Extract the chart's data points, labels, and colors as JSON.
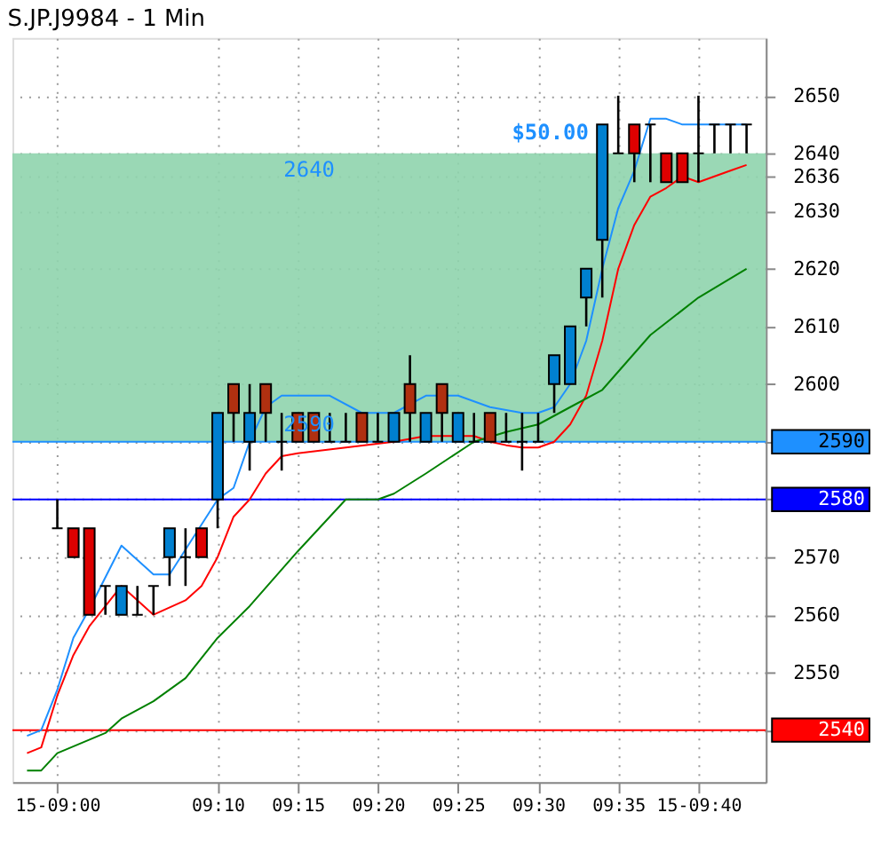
{
  "chart_data": {
    "type": "candlestick",
    "title": "S.JP.J9984 - 1 Min",
    "x": [
      9.0,
      9.0167,
      9.0333,
      9.05,
      9.0667,
      9.0833,
      9.1,
      9.1167,
      9.1333,
      9.15,
      9.1667,
      9.1833,
      9.2,
      9.2167,
      9.2333,
      9.25,
      9.2667,
      9.2833,
      9.3,
      9.3167,
      9.3333,
      9.35,
      9.3667,
      9.3833,
      9.4,
      9.4167,
      9.4333,
      9.45,
      9.4667,
      9.4833,
      9.5,
      9.5167,
      9.5333,
      9.55,
      9.5667,
      9.5833,
      9.6,
      9.6167,
      9.6333,
      9.65,
      9.6667,
      9.6833,
      9.7,
      9.7167
    ],
    "ohlc": [
      [
        2575,
        2580,
        2575,
        2575
      ],
      [
        2575,
        2575,
        2570,
        2570
      ],
      [
        2575,
        2575,
        2560,
        2560
      ],
      [
        2565,
        2565,
        2560,
        2565
      ],
      [
        2560,
        2565,
        2560,
        2565
      ],
      [
        2560,
        2565,
        2560,
        2560
      ],
      [
        2565,
        2565,
        2560,
        2565
      ],
      [
        2570,
        2575,
        2565,
        2575
      ],
      [
        2570,
        2575,
        2565,
        2570
      ],
      [
        2575,
        2575,
        2570,
        2570
      ],
      [
        2580,
        2595,
        2575,
        2595
      ],
      [
        2600,
        2600,
        2590,
        2595
      ],
      [
        2590,
        2600,
        2585,
        2595
      ],
      [
        2600,
        2600,
        2590,
        2595
      ],
      [
        2590,
        2595,
        2585,
        2590
      ],
      [
        2595,
        2595,
        2590,
        2590
      ],
      [
        2595,
        2595,
        2590,
        2590
      ],
      [
        2590,
        2595,
        2590,
        2590
      ],
      [
        2590,
        2595,
        2590,
        2590
      ],
      [
        2595,
        2595,
        2590,
        2590
      ],
      [
        2590,
        2595,
        2590,
        2590
      ],
      [
        2590,
        2595,
        2590,
        2595
      ],
      [
        2600,
        2605,
        2590,
        2595
      ],
      [
        2590,
        2595,
        2590,
        2595
      ],
      [
        2600,
        2600,
        2590,
        2595
      ],
      [
        2590,
        2595,
        2590,
        2595
      ],
      [
        2590,
        2595,
        2590,
        2590
      ],
      [
        2595,
        2595,
        2590,
        2590
      ],
      [
        2590,
        2595,
        2590,
        2590
      ],
      [
        2590,
        2595,
        2585,
        2590
      ],
      [
        2590,
        2595,
        2590,
        2590
      ],
      [
        2600,
        2605,
        2595,
        2605
      ],
      [
        2600,
        2610,
        2600,
        2610
      ],
      [
        2615,
        2620,
        2610,
        2620
      ],
      [
        2625,
        2645,
        2615,
        2645
      ],
      [
        2640,
        2650,
        2640,
        2640
      ],
      [
        2645,
        2645,
        2635,
        2640
      ],
      [
        2645,
        2645,
        2635,
        2645
      ],
      [
        2640,
        2640,
        2635,
        2635
      ],
      [
        2640,
        2640,
        2635,
        2635
      ],
      [
        2640,
        2650,
        2635,
        2640
      ],
      [
        2645,
        2645,
        2640,
        2645
      ],
      [
        2645,
        2645,
        2640,
        2645
      ],
      [
        2645,
        2645,
        2640,
        2645
      ]
    ],
    "colors": [
      "#000000",
      "#dd0000",
      "#dd0000",
      "#000000",
      "#0080d0",
      "#000000",
      "#000000",
      "#0080d0",
      "#000000",
      "#dd0000",
      "#0080d0",
      "#b03010",
      "#0080d0",
      "#b03010",
      "#000000",
      "#b03010",
      "#b03010",
      "#000000",
      "#000000",
      "#b03010",
      "#000000",
      "#0080d0",
      "#b03010",
      "#0080d0",
      "#b03010",
      "#0080d0",
      "#000000",
      "#b03010",
      "#000000",
      "#000000",
      "#000000",
      "#0080d0",
      "#0080d0",
      "#0080d0",
      "#0080d0",
      "#000000",
      "#dd0000",
      "#000000",
      "#dd0000",
      "#dd0000",
      "#000000",
      "#000000",
      "#000000",
      "#000000"
    ],
    "series": [
      {
        "type": "line",
        "color": "#1e90ff",
        "x": [
          8.9685,
          8.9833,
          9.0,
          9.0167,
          9.0333,
          9.0667,
          9.1,
          9.1167,
          9.1667,
          9.1833,
          9.2,
          9.2167,
          9.2333,
          9.2833,
          9.3167,
          9.35,
          9.3833,
          9.4167,
          9.45,
          9.4833,
          9.5,
          9.5167,
          9.5333,
          9.55,
          9.5667,
          9.5833,
          9.6,
          9.6167,
          9.6333,
          9.65,
          9.7167
        ],
        "values": [
          2539,
          2540,
          2547,
          2556,
          2561,
          2572,
          2567,
          2567,
          2580,
          2582,
          2590,
          2596,
          2598,
          2598,
          2595,
          2595,
          2598,
          2598,
          2596,
          2595,
          2595,
          2596,
          2600,
          2607.5,
          2620,
          2630.5,
          2637,
          2646,
          2646,
          2645,
          2645
        ]
      },
      {
        "type": "line",
        "color": "#ff0000",
        "x": [
          8.9685,
          8.9833,
          9.0,
          9.0167,
          9.0333,
          9.0667,
          9.1,
          9.1333,
          9.15,
          9.1667,
          9.1833,
          9.2,
          9.2167,
          9.2333,
          9.25,
          9.3,
          9.35,
          9.3833,
          9.4333,
          9.45,
          9.4667,
          9.4833,
          9.5,
          9.5167,
          9.5333,
          9.55,
          9.5667,
          9.5833,
          9.6,
          9.6167,
          9.6333,
          9.65,
          9.6667,
          9.6833,
          9.7,
          9.7167
        ],
        "values": [
          2536,
          2537,
          2546,
          2553,
          2558,
          2565,
          2560,
          2562.5,
          2565,
          2570,
          2577,
          2580,
          2584.5,
          2587.5,
          2588,
          2589,
          2590,
          2591,
          2591,
          2590,
          2589.4,
          2589,
          2589,
          2590,
          2593,
          2598,
          2607.5,
          2620,
          2627.6,
          2632.5,
          2634,
          2636,
          2635,
          2636,
          2637,
          2638
        ]
      },
      {
        "type": "line",
        "color": "#008000",
        "x": [
          8.9685,
          8.9833,
          9.0,
          9.05,
          9.0667,
          9.1,
          9.1333,
          9.1667,
          9.2,
          9.25,
          9.3,
          9.3333,
          9.35,
          9.3833,
          9.4333,
          9.4667,
          9.5,
          9.5333,
          9.5667,
          9.6167,
          9.6667,
          9.7167
        ],
        "values": [
          2533,
          2533,
          2536,
          2539.5,
          2542,
          2545,
          2549,
          2556,
          2561.5,
          2571,
          2580,
          2580,
          2581,
          2584.5,
          2590,
          2591.7,
          2593,
          2596,
          2599,
          2608.5,
          2615,
          2620
        ]
      }
    ],
    "xlim": [
      8.9533,
      9.7367
    ],
    "xticks": [
      {
        "value": 9.0,
        "label": "15-09:00"
      },
      {
        "value": 9.1667,
        "label": "09:10"
      },
      {
        "value": 9.25,
        "label": "09:15"
      },
      {
        "value": 9.3333,
        "label": "09:20"
      },
      {
        "value": 9.4167,
        "label": "09:25"
      },
      {
        "value": 9.5,
        "label": "09:30"
      },
      {
        "value": 9.5833,
        "label": "09:35"
      },
      {
        "value": 9.6667,
        "label": "15-09:40"
      }
    ],
    "ylim": [
      2531,
      2660
    ],
    "yticks": [
      {
        "value": 2540,
        "label": null
      },
      2550,
      2560,
      2570,
      {
        "value": 2580,
        "label": null
      },
      {
        "value": 2590,
        "label": null
      },
      2600,
      2610,
      2620,
      2630,
      2636,
      2640,
      2650
    ],
    "grid": true,
    "ref_lines": [
      {
        "axis": "y",
        "value": 2590,
        "label": "2590",
        "color": "#1e90ff"
      },
      {
        "axis": "y",
        "value": 2580,
        "label": "2580",
        "color": "#0000ff"
      },
      {
        "axis": "y",
        "value": 2540,
        "label": "2540",
        "color": "#ff0000"
      }
    ],
    "bands": [
      {
        "axis": "y",
        "from": 2590,
        "to": 2640,
        "color": "#8fd4ad"
      }
    ],
    "annotations": [
      "2640",
      "2590",
      "$50.00"
    ]
  }
}
